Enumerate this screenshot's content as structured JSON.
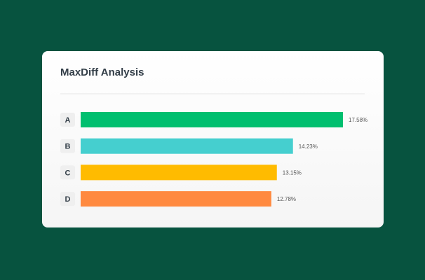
{
  "chart_data": {
    "type": "bar",
    "orientation": "horizontal",
    "title": "MaxDiff Analysis",
    "categories": [
      "A",
      "B",
      "C",
      "D"
    ],
    "values": [
      17.58,
      14.23,
      13.15,
      12.78
    ],
    "value_labels": [
      "17.58%",
      "14.23%",
      "13.15%",
      "12.78%"
    ],
    "colors": [
      "#00bf6f",
      "#45cfcf",
      "#ffbb00",
      "#ff8a40"
    ]
  }
}
